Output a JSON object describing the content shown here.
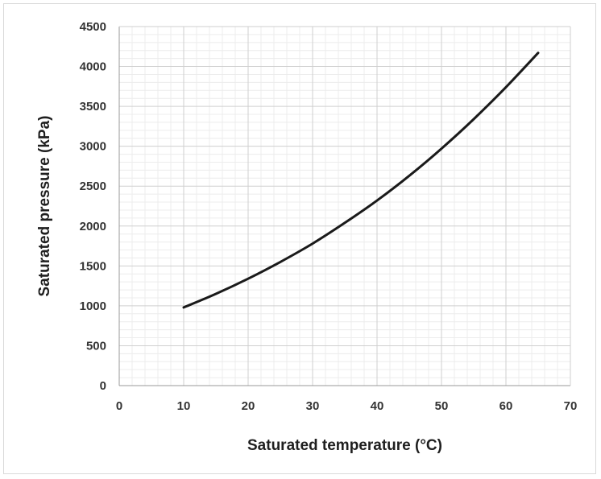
{
  "chart_data": {
    "type": "line",
    "title": "",
    "xlabel": "Saturated temperature (°C)",
    "ylabel": "Saturated pressure (kPa)",
    "xlim": [
      0,
      70
    ],
    "ylim": [
      0,
      4500
    ],
    "xticks": [
      "0",
      "10",
      "20",
      "30",
      "40",
      "50",
      "60",
      "70"
    ],
    "yticks": [
      "0",
      "500",
      "1000",
      "1500",
      "2000",
      "2500",
      "3000",
      "3500",
      "4000",
      "4500"
    ],
    "grid": true,
    "legend": "none",
    "colors": {
      "line": "#1a1a1a",
      "major_grid": "#cfcfcf",
      "minor_grid": "#ececec",
      "axis": "#999999"
    },
    "series": [
      {
        "x": [
          10,
          15,
          20,
          25,
          30,
          35,
          40,
          45,
          50,
          55,
          60,
          65
        ],
        "y": [
          980,
          1150,
          1340,
          1550,
          1780,
          2040,
          2320,
          2630,
          2970,
          3340,
          3740,
          4170
        ]
      }
    ]
  }
}
